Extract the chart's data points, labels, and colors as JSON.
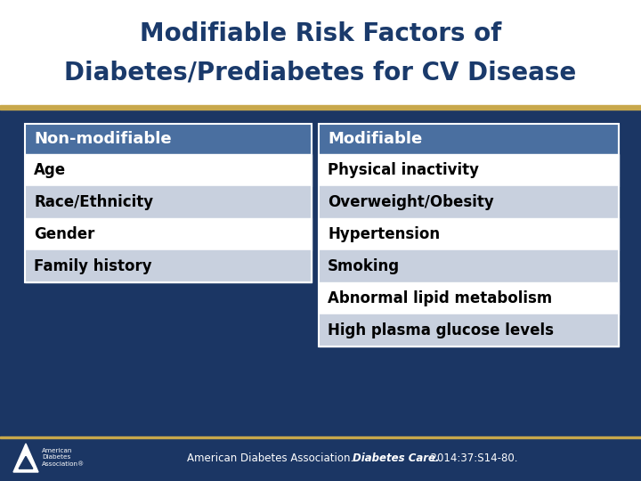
{
  "title_line1": "Modifiable Risk Factors of",
  "title_line2": "Diabetes/Prediabetes for CV Disease",
  "title_color": "#1a3a6b",
  "title_fontsize": 20,
  "bg_color": "#1b3664",
  "header_color": "#4a6fa0",
  "row_color_white": "#ffffff",
  "row_color_light_blue": "#c8d0de",
  "col1_header": "Non-modifiable",
  "col2_header": "Modifiable",
  "col1_items": [
    "Age",
    "Race/Ethnicity",
    "Gender",
    "Family history"
  ],
  "col2_items": [
    "Physical inactivity",
    "Overweight/Obesity",
    "Hypertension",
    "Smoking",
    "Abnormal lipid metabolism",
    "High plasma glucose levels"
  ],
  "header_text_color": "#ffffff",
  "item_text_color": "#000000",
  "footer_color": "#ffffff",
  "top_bg_color": "#ffffff",
  "gold_bar_color": "#c8a84b",
  "item_fontsize": 12,
  "header_fontsize": 13
}
